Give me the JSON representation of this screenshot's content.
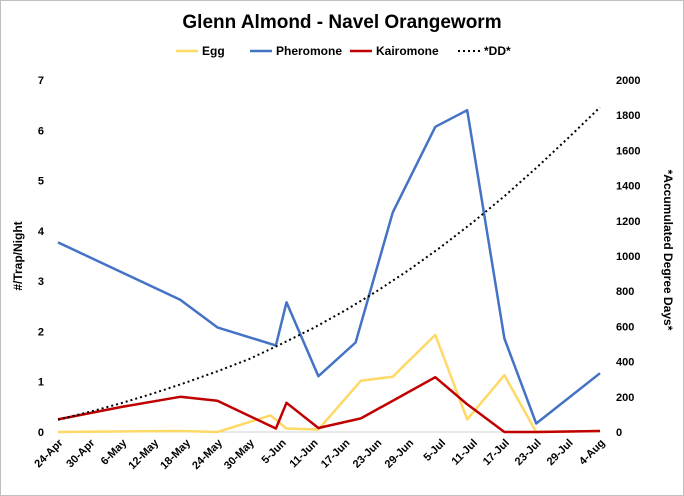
{
  "chart_data": {
    "type": "line",
    "title": "Glenn Almond - Navel Orangeworm",
    "ylabel": "#/Trap/Night",
    "y2label": "*Accumulated Degree Days*",
    "ylim": [
      0,
      7
    ],
    "y2lim": [
      0,
      2000
    ],
    "yticks": [
      "0",
      "1",
      "2",
      "3",
      "4",
      "5",
      "6",
      "7"
    ],
    "y2ticks": [
      "0",
      "200",
      "400",
      "600",
      "800",
      "1000",
      "1200",
      "1400",
      "1600",
      "1800",
      "2000"
    ],
    "xtick_labels": [
      "24-Apr",
      "30-Apr",
      "6-May",
      "12-May",
      "18-May",
      "24-May",
      "30-May",
      "5-Jun",
      "11-Jun",
      "17-Jun",
      "23-Jun",
      "29-Jun",
      "5-Jul",
      "11-Jul",
      "17-Jul",
      "23-Jul",
      "29-Jul",
      "4-Aug"
    ],
    "xtick_dates": [
      "2023-04-24",
      "2023-04-30",
      "2023-05-06",
      "2023-05-12",
      "2023-05-18",
      "2023-05-24",
      "2023-05-30",
      "2023-06-05",
      "2023-06-11",
      "2023-06-17",
      "2023-06-23",
      "2023-06-29",
      "2023-07-05",
      "2023-07-11",
      "2023-07-17",
      "2023-07-23",
      "2023-07-29",
      "2023-08-04"
    ],
    "legend_position": "top",
    "series": [
      {
        "name": "Egg",
        "axis": "left",
        "color": "#FFD966",
        "style": "solid",
        "points": [
          [
            "2023-04-24",
            0.0
          ],
          [
            "2023-05-17",
            0.02
          ],
          [
            "2023-05-24",
            0.0
          ],
          [
            "2023-06-03",
            0.33
          ],
          [
            "2023-06-06",
            0.07
          ],
          [
            "2023-06-12",
            0.05
          ],
          [
            "2023-06-20",
            1.02
          ],
          [
            "2023-06-26",
            1.1
          ],
          [
            "2023-07-04",
            1.93
          ],
          [
            "2023-07-10",
            0.25
          ],
          [
            "2023-07-17",
            1.13
          ],
          [
            "2023-07-23",
            0.0
          ],
          [
            "2023-08-04",
            0.02
          ]
        ]
      },
      {
        "name": "Pheromone",
        "axis": "left",
        "color": "#4472C4",
        "style": "solid",
        "points": [
          [
            "2023-04-24",
            3.77
          ],
          [
            "2023-05-17",
            2.63
          ],
          [
            "2023-05-24",
            2.08
          ],
          [
            "2023-06-04",
            1.72
          ],
          [
            "2023-06-06",
            2.58
          ],
          [
            "2023-06-12",
            1.11
          ],
          [
            "2023-06-19",
            1.78
          ],
          [
            "2023-06-26",
            4.37
          ],
          [
            "2023-07-04",
            6.07
          ],
          [
            "2023-07-10",
            6.4
          ],
          [
            "2023-07-17",
            1.86
          ],
          [
            "2023-07-23",
            0.17
          ],
          [
            "2023-08-04",
            1.17
          ]
        ]
      },
      {
        "name": "Kairomone",
        "axis": "left",
        "color": "#C00000",
        "style": "solid",
        "points": [
          [
            "2023-04-24",
            0.25
          ],
          [
            "2023-05-06",
            0.5
          ],
          [
            "2023-05-17",
            0.7
          ],
          [
            "2023-05-24",
            0.62
          ],
          [
            "2023-06-04",
            0.07
          ],
          [
            "2023-06-06",
            0.58
          ],
          [
            "2023-06-12",
            0.08
          ],
          [
            "2023-06-20",
            0.27
          ],
          [
            "2023-07-04",
            1.09
          ],
          [
            "2023-07-10",
            0.55
          ],
          [
            "2023-07-17",
            0.0
          ],
          [
            "2023-07-23",
            0.0
          ],
          [
            "2023-08-04",
            0.02
          ]
        ]
      },
      {
        "name": "*DD*",
        "axis": "right",
        "color": "#000000",
        "style": "dotted",
        "points": [
          [
            "2023-04-24",
            70
          ],
          [
            "2023-04-30",
            115
          ],
          [
            "2023-05-06",
            165
          ],
          [
            "2023-05-12",
            220
          ],
          [
            "2023-05-18",
            280
          ],
          [
            "2023-05-24",
            345
          ],
          [
            "2023-05-30",
            415
          ],
          [
            "2023-06-05",
            500
          ],
          [
            "2023-06-11",
            590
          ],
          [
            "2023-06-17",
            690
          ],
          [
            "2023-06-23",
            800
          ],
          [
            "2023-06-29",
            920
          ],
          [
            "2023-07-05",
            1050
          ],
          [
            "2023-07-11",
            1190
          ],
          [
            "2023-07-17",
            1340
          ],
          [
            "2023-07-23",
            1500
          ],
          [
            "2023-07-29",
            1670
          ],
          [
            "2023-08-04",
            1845
          ]
        ]
      }
    ]
  }
}
